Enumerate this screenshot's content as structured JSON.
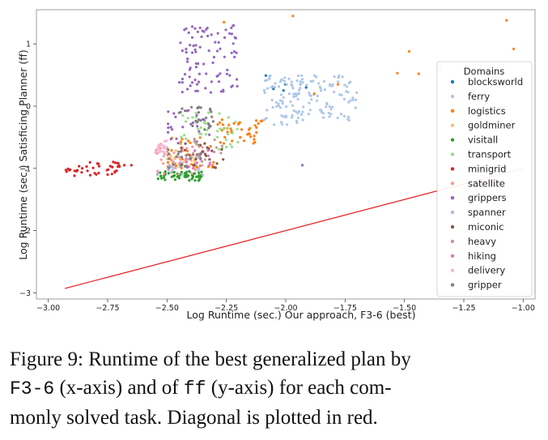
{
  "chart_data": {
    "type": "scatter",
    "title": "",
    "xlabel": "Log Runtime (sec.) Our approach, F3-6 (best)",
    "ylabel": "Log Runtime (sec.) Satisficing Planner (ff)",
    "xlim": [
      -3.05,
      -0.95
    ],
    "ylim": [
      -3.1,
      1.55
    ],
    "xticks": [
      -3.0,
      -2.75,
      -2.5,
      -2.25,
      -2.0,
      -1.75,
      -1.5,
      -1.25,
      -1.0
    ],
    "xtick_labels": [
      "−3.00",
      "−2.75",
      "−2.50",
      "−2.25",
      "−2.00",
      "−1.75",
      "−1.50",
      "−1.25",
      "−1.00"
    ],
    "yticks": [
      -3,
      -2,
      -1,
      0,
      1
    ],
    "ytick_labels": [
      "−3",
      "−2",
      "−1",
      "0",
      "1"
    ],
    "grid": false,
    "legend": {
      "title": "Domains",
      "placement": "top-right"
    },
    "diagonal": {
      "x": [
        -2.93,
        -1.0
      ],
      "y": [
        -2.93,
        -1.0
      ],
      "color": "#e31a1c"
    },
    "series": [
      {
        "name": "blocksworld",
        "color": "#1f77b4",
        "clusters": [
          {
            "x": [
              -2.15,
              -1.9
            ],
            "y": [
              0.1,
              0.5
            ],
            "n": 5
          }
        ]
      },
      {
        "name": "ferry",
        "color": "#aec7e8",
        "clusters": [
          {
            "x": [
              -2.1,
              -1.7
            ],
            "y": [
              -0.3,
              0.5
            ],
            "n": 150
          },
          {
            "x": [
              -2.5,
              -2.35
            ],
            "y": [
              -1.1,
              -0.9
            ],
            "n": 15
          }
        ]
      },
      {
        "name": "logistics",
        "color": "#ff7f0e",
        "clusters": [
          {
            "x": [
              -2.5,
              -2.3
            ],
            "y": [
              -1.0,
              -0.5
            ],
            "n": 40
          },
          {
            "x": [
              -2.3,
              -2.1
            ],
            "y": [
              -0.6,
              -0.2
            ],
            "n": 40
          }
        ],
        "points": [
          [
            -1.97,
            1.45
          ],
          [
            -1.48,
            0.88
          ],
          [
            -1.07,
            1.38
          ],
          [
            -1.04,
            0.92
          ],
          [
            -1.53,
            0.53
          ],
          [
            -1.44,
            0.52
          ],
          [
            -1.12,
            0.5
          ],
          [
            -1.35,
            0.62
          ],
          [
            -2.26,
            1.35
          ],
          [
            -1.88,
            0.2
          ],
          [
            -1.78,
            0.35
          ]
        ]
      },
      {
        "name": "goldminer",
        "color": "#ffbb78",
        "clusters": [
          {
            "x": [
              -2.5,
              -2.35
            ],
            "y": [
              -1.0,
              -0.7
            ],
            "n": 25
          }
        ]
      },
      {
        "name": "visitall",
        "color": "#2ca02c",
        "clusters": [
          {
            "x": [
              -2.55,
              -2.35
            ],
            "y": [
              -1.2,
              -1.05
            ],
            "n": 60
          }
        ]
      },
      {
        "name": "transport",
        "color": "#98df8a",
        "clusters": [
          {
            "x": [
              -2.45,
              -2.2
            ],
            "y": [
              -0.7,
              -0.1
            ],
            "n": 40
          }
        ]
      },
      {
        "name": "minigrid",
        "color": "#d62728",
        "clusters": [
          {
            "x": [
              -2.95,
              -2.7
            ],
            "y": [
              -1.12,
              -0.88
            ],
            "n": 40
          }
        ],
        "points": [
          [
            -2.68,
            -0.95
          ],
          [
            -2.65,
            -0.95
          ],
          [
            -2.73,
            -0.98
          ]
        ]
      },
      {
        "name": "satellite",
        "color": "#ff9896",
        "clusters": [
          {
            "x": [
              -2.55,
              -2.35
            ],
            "y": [
              -1.1,
              -0.6
            ],
            "n": 30
          }
        ]
      },
      {
        "name": "grippers",
        "color": "#9467bd",
        "clusters": [
          {
            "x": [
              -2.45,
              -2.2
            ],
            "y": [
              0.2,
              1.3
            ],
            "n": 90
          },
          {
            "x": [
              -2.5,
              -2.3
            ],
            "y": [
              -0.6,
              0.0
            ],
            "n": 25
          }
        ],
        "points": [
          [
            -1.93,
            -0.95
          ]
        ]
      },
      {
        "name": "spanner",
        "color": "#c5b0d5",
        "clusters": [
          {
            "x": [
              -2.55,
              -2.35
            ],
            "y": [
              -1.1,
              -0.8
            ],
            "n": 20
          }
        ]
      },
      {
        "name": "miconic",
        "color": "#8c564b",
        "clusters": [
          {
            "x": [
              -2.45,
              -2.25
            ],
            "y": [
              -1.0,
              -0.6
            ],
            "n": 30
          }
        ]
      },
      {
        "name": "heavy",
        "color": "#c49c94",
        "clusters": [
          {
            "x": [
              -2.4,
              -2.25
            ],
            "y": [
              -0.9,
              -0.5
            ],
            "n": 15
          }
        ]
      },
      {
        "name": "hiking",
        "color": "#e377c2",
        "clusters": [
          {
            "x": [
              -2.45,
              -2.3
            ],
            "y": [
              -1.0,
              -0.7
            ],
            "n": 15
          }
        ]
      },
      {
        "name": "delivery",
        "color": "#f7b6d2",
        "clusters": [
          {
            "x": [
              -2.55,
              -2.5
            ],
            "y": [
              -0.75,
              -0.55
            ],
            "n": 20
          }
        ]
      },
      {
        "name": "gripper",
        "color": "#7f7f7f",
        "clusters": [
          {
            "x": [
              -2.45,
              -2.3
            ],
            "y": [
              -0.4,
              0.0
            ],
            "n": 25
          },
          {
            "x": [
              -2.5,
              -2.35
            ],
            "y": [
              -1.0,
              -0.7
            ],
            "n": 20
          }
        ]
      }
    ]
  },
  "caption": {
    "line1": "Figure 9: Runtime of the best generalized plan by",
    "line2_code1": "F3-6",
    "line2_text1": " (x-axis) and of ",
    "line2_code2": "ff",
    "line2_text2": " (y-axis) for each com-",
    "line3": "monly solved task. Diagonal is plotted in red."
  }
}
